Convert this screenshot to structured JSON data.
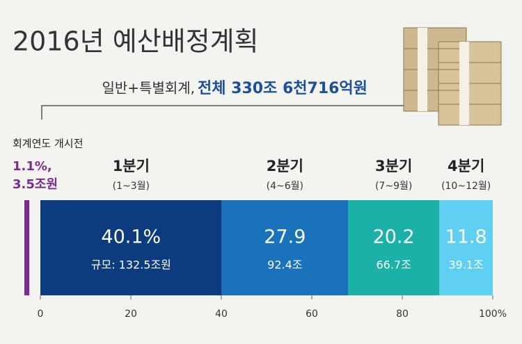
{
  "chart_data": {
    "type": "bar",
    "orientation": "horizontal",
    "stacked": true,
    "title": "2016년 예산배정계획",
    "subtitle": "일반+특별회계, ",
    "subtitle_total": "전체 330조 6천716억원",
    "pre_fiscal": {
      "label": "회계연도 개시전",
      "value": 1.1,
      "value_label": "1.1%,",
      "amount": 3.5,
      "amount_label": "3.5조원",
      "color": "#7b2d8e"
    },
    "series": [
      {
        "name": "1분기",
        "period": "(1~3월)",
        "color": "#0d3c7e",
        "values": [
          40.1
        ],
        "value_labels": [
          "40.1%"
        ],
        "amount": 132.5,
        "amount_label": "규모: 132.5조원"
      },
      {
        "name": "2분기",
        "period": "(4~6월)",
        "color": "#1a72bb",
        "values": [
          27.9
        ],
        "amount": 92.4,
        "amount_label": "92.4조"
      },
      {
        "name": "3분기",
        "period": "(7~9월)",
        "color": "#1bb0a8",
        "values": [
          20.2
        ],
        "amount": 66.7,
        "amount_label": "66.7조"
      },
      {
        "name": "4분기",
        "period": "(10~12월)",
        "color": "#5fd0f2",
        "values": [
          11.8
        ],
        "amount": 39.1,
        "amount_label": "39.1조"
      }
    ],
    "xlim": [
      0,
      100
    ],
    "xticks": [
      0,
      20,
      40,
      60,
      80,
      {
        "value": 100,
        "label": "100%"
      }
    ]
  }
}
